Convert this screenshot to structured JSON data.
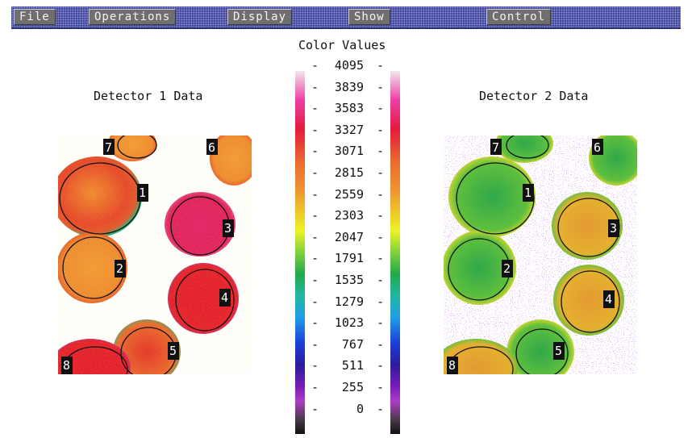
{
  "menu": {
    "items": [
      "File",
      "Operations",
      "Display",
      "Show",
      "Control"
    ]
  },
  "colors": {
    "menubar": "#4a4ea6",
    "menu_button": "#6f6f6f",
    "label_box": "#111111"
  },
  "scale": {
    "title": "Color Values",
    "values": [
      "4095",
      "3839",
      "3583",
      "3327",
      "3071",
      "2815",
      "2559",
      "2303",
      "2047",
      "1791",
      "1535",
      "1279",
      "1023",
      "767",
      "511",
      "255",
      "0"
    ]
  },
  "detector1": {
    "title": "Detector 1 Data",
    "labels": [
      "7",
      "6",
      "1",
      "3",
      "2",
      "4",
      "5",
      "8"
    ]
  },
  "detector2": {
    "title": "Detector 2 Data",
    "labels": [
      "7",
      "6",
      "1",
      "3",
      "2",
      "4",
      "5",
      "8"
    ]
  }
}
